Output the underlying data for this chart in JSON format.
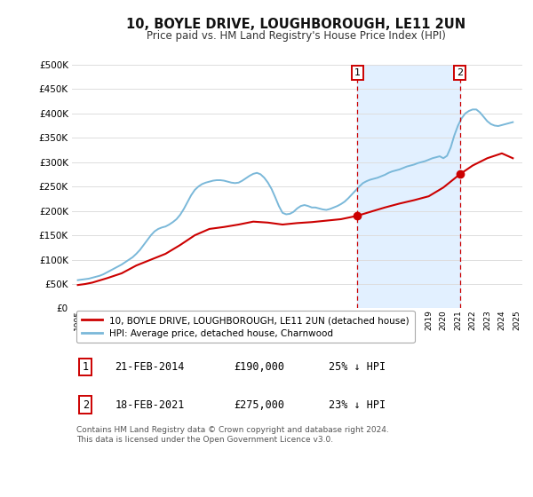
{
  "title": "10, BOYLE DRIVE, LOUGHBOROUGH, LE11 2UN",
  "subtitle": "Price paid vs. HM Land Registry's House Price Index (HPI)",
  "ylim": [
    0,
    500000
  ],
  "yticks": [
    0,
    50000,
    100000,
    150000,
    200000,
    250000,
    300000,
    350000,
    400000,
    450000,
    500000
  ],
  "ytick_labels": [
    "£0",
    "£50K",
    "£100K",
    "£150K",
    "£200K",
    "£250K",
    "£300K",
    "£350K",
    "£400K",
    "£450K",
    "£500K"
  ],
  "xlim_start": 1994.6,
  "xlim_end": 2025.4,
  "hpi_color": "#7ab8d9",
  "price_color": "#cc0000",
  "vline_color": "#cc0000",
  "annotation_box_color": "#cc0000",
  "transaction1_x": 2014.12,
  "transaction1_y": 190000,
  "transaction2_x": 2021.12,
  "transaction2_y": 275000,
  "legend_label_red": "10, BOYLE DRIVE, LOUGHBOROUGH, LE11 2UN (detached house)",
  "legend_label_blue": "HPI: Average price, detached house, Charnwood",
  "table_row1": [
    "1",
    "21-FEB-2014",
    "£190,000",
    "25% ↓ HPI"
  ],
  "table_row2": [
    "2",
    "18-FEB-2021",
    "£275,000",
    "23% ↓ HPI"
  ],
  "footnote": "Contains HM Land Registry data © Crown copyright and database right 2024.\nThis data is licensed under the Open Government Licence v3.0.",
  "bg_color": "#ffffff",
  "grid_color": "#dddddd",
  "highlight_bg_color": "#ddeeff",
  "hpi_data_x": [
    1995.0,
    1995.25,
    1995.5,
    1995.75,
    1996.0,
    1996.25,
    1996.5,
    1996.75,
    1997.0,
    1997.25,
    1997.5,
    1997.75,
    1998.0,
    1998.25,
    1998.5,
    1998.75,
    1999.0,
    1999.25,
    1999.5,
    1999.75,
    2000.0,
    2000.25,
    2000.5,
    2000.75,
    2001.0,
    2001.25,
    2001.5,
    2001.75,
    2002.0,
    2002.25,
    2002.5,
    2002.75,
    2003.0,
    2003.25,
    2003.5,
    2003.75,
    2004.0,
    2004.25,
    2004.5,
    2004.75,
    2005.0,
    2005.25,
    2005.5,
    2005.75,
    2006.0,
    2006.25,
    2006.5,
    2006.75,
    2007.0,
    2007.25,
    2007.5,
    2007.75,
    2008.0,
    2008.25,
    2008.5,
    2008.75,
    2009.0,
    2009.25,
    2009.5,
    2009.75,
    2010.0,
    2010.25,
    2010.5,
    2010.75,
    2011.0,
    2011.25,
    2011.5,
    2011.75,
    2012.0,
    2012.25,
    2012.5,
    2012.75,
    2013.0,
    2013.25,
    2013.5,
    2013.75,
    2014.0,
    2014.25,
    2014.5,
    2014.75,
    2015.0,
    2015.25,
    2015.5,
    2015.75,
    2016.0,
    2016.25,
    2016.5,
    2016.75,
    2017.0,
    2017.25,
    2017.5,
    2017.75,
    2018.0,
    2018.25,
    2018.5,
    2018.75,
    2019.0,
    2019.25,
    2019.5,
    2019.75,
    2020.0,
    2020.25,
    2020.5,
    2020.75,
    2021.0,
    2021.25,
    2021.5,
    2021.75,
    2022.0,
    2022.25,
    2022.5,
    2022.75,
    2023.0,
    2023.25,
    2023.5,
    2023.75,
    2024.0,
    2024.25,
    2024.5,
    2024.75
  ],
  "hpi_data_y": [
    58000,
    59000,
    60000,
    61000,
    63000,
    65000,
    67000,
    70000,
    74000,
    78000,
    82000,
    86000,
    90000,
    95000,
    100000,
    105000,
    112000,
    120000,
    130000,
    140000,
    150000,
    158000,
    163000,
    166000,
    168000,
    172000,
    177000,
    183000,
    192000,
    204000,
    218000,
    232000,
    243000,
    250000,
    255000,
    258000,
    260000,
    262000,
    263000,
    263000,
    262000,
    260000,
    258000,
    257000,
    258000,
    262000,
    267000,
    272000,
    276000,
    278000,
    275000,
    268000,
    258000,
    245000,
    228000,
    210000,
    196000,
    193000,
    194000,
    198000,
    205000,
    210000,
    212000,
    210000,
    207000,
    207000,
    205000,
    203000,
    202000,
    204000,
    207000,
    210000,
    214000,
    219000,
    226000,
    234000,
    242000,
    250000,
    257000,
    261000,
    264000,
    266000,
    268000,
    271000,
    274000,
    278000,
    281000,
    283000,
    285000,
    288000,
    291000,
    293000,
    295000,
    298000,
    300000,
    302000,
    305000,
    308000,
    310000,
    312000,
    308000,
    313000,
    330000,
    355000,
    375000,
    390000,
    400000,
    405000,
    408000,
    408000,
    402000,
    393000,
    384000,
    378000,
    375000,
    374000,
    376000,
    378000,
    380000,
    382000
  ],
  "price_data_x": [
    1995.0,
    1995.5,
    1996.0,
    1997.0,
    1998.0,
    1999.0,
    2000.0,
    2001.0,
    2002.0,
    2003.0,
    2004.0,
    2005.0,
    2006.0,
    2007.0,
    2008.0,
    2009.0,
    2010.0,
    2011.0,
    2012.0,
    2013.0,
    2014.12,
    2015.0,
    2016.0,
    2017.0,
    2018.0,
    2019.0,
    2020.0,
    2021.12,
    2022.0,
    2023.0,
    2024.0,
    2024.75
  ],
  "price_data_y": [
    48000,
    50000,
    53000,
    62000,
    72000,
    88000,
    100000,
    112000,
    130000,
    150000,
    163000,
    167000,
    172000,
    178000,
    176000,
    172000,
    175000,
    177000,
    180000,
    183000,
    190000,
    198000,
    207000,
    215000,
    222000,
    230000,
    248000,
    275000,
    293000,
    308000,
    318000,
    308000
  ]
}
